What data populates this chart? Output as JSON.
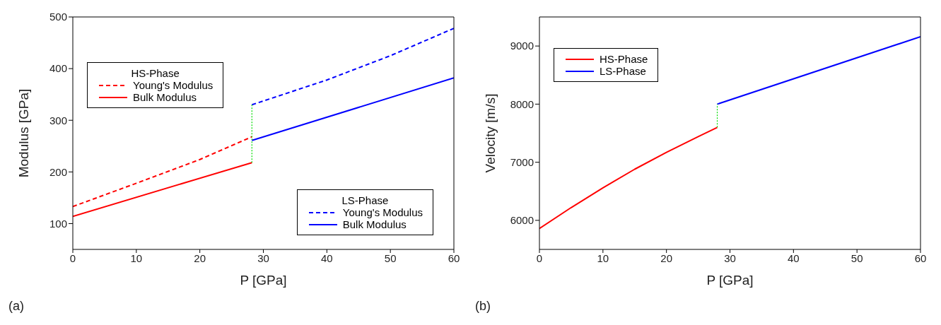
{
  "chart_data": [
    {
      "type": "line",
      "xlabel": "P [GPa]",
      "ylabel": "Modulus [GPa]",
      "xlim": [
        0,
        60
      ],
      "ylim": [
        50,
        500
      ],
      "xticks": [
        0,
        10,
        20,
        30,
        40,
        50,
        60
      ],
      "yticks": [
        100,
        200,
        300,
        400,
        500
      ],
      "legend": "left",
      "annotations": [
        "(a)",
        "HS-Phase",
        "LS-Phase"
      ],
      "series": [
        {
          "name": "Young's Modulus",
          "color": "#ff0000",
          "line_style": "dashed",
          "x": [
            0,
            10,
            20,
            28.2
          ],
          "values": [
            133,
            178,
            224,
            268
          ]
        },
        {
          "name": "Bulk Modulus",
          "color": "#ff0000",
          "line_style": "solid",
          "x": [
            0,
            28.2
          ],
          "values": [
            114,
            218
          ]
        },
        {
          "name": "Young's Modulus",
          "color": "#0000ff",
          "line_style": "dashed",
          "x": [
            28.2,
            40,
            50,
            60
          ],
          "values": [
            330,
            378,
            425,
            478
          ]
        },
        {
          "name": "Bulk Modulus",
          "color": "#0000ff",
          "line_style": "solid",
          "x": [
            28.2,
            60
          ],
          "values": [
            261,
            382
          ]
        },
        {
          "color": "#00dd00",
          "line_style": "dotted",
          "x": [
            28.2,
            28.2
          ],
          "values": [
            218,
            330
          ]
        }
      ]
    },
    {
      "type": "line",
      "xlabel": "P [GPa]",
      "ylabel": "Velocity [m/s]",
      "xlim": [
        0,
        60
      ],
      "ylim": [
        5500,
        9500
      ],
      "xticks": [
        0,
        10,
        20,
        30,
        40,
        50,
        60
      ],
      "yticks": [
        6000,
        7000,
        8000,
        9000
      ],
      "legend": "top left",
      "annotations": [
        "(b)"
      ],
      "series": [
        {
          "name": "HS-Phase",
          "color": "#ff0000",
          "line_style": "solid",
          "x": [
            0,
            5,
            10,
            15,
            20,
            25,
            28
          ],
          "values": [
            5860,
            6220,
            6560,
            6880,
            7170,
            7440,
            7600
          ]
        },
        {
          "name": "LS-Phase",
          "color": "#0000ff",
          "line_style": "solid",
          "x": [
            28,
            60
          ],
          "values": [
            8000,
            9160
          ]
        },
        {
          "color": "#00dd00",
          "line_style": "dotted",
          "x": [
            28,
            28
          ],
          "values": [
            7600,
            8000
          ]
        }
      ]
    }
  ]
}
